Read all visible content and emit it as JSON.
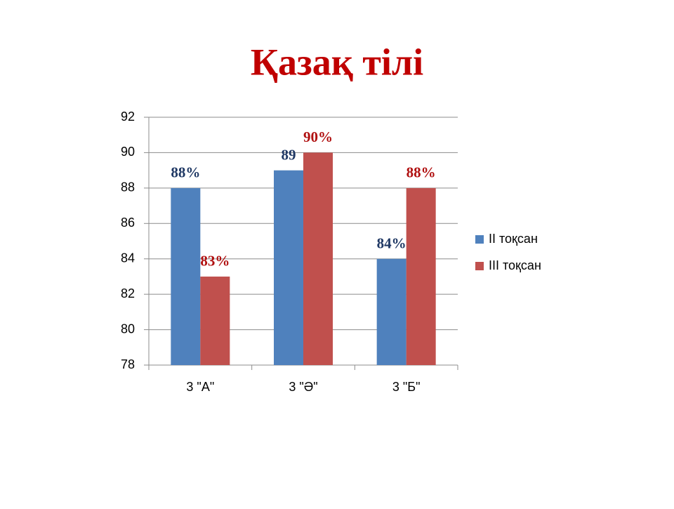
{
  "chart_data": {
    "type": "bar",
    "title": "Қазақ тілі",
    "categories": [
      "3 \"А\"",
      "3 \"Ә\"",
      "3 \"Б\""
    ],
    "series": [
      {
        "name": "II тоқсан",
        "color": "#4f81bd",
        "label_color": "#1f3864",
        "values": [
          88,
          89,
          84
        ],
        "value_labels": [
          "88%",
          "89",
          "84%"
        ]
      },
      {
        "name": "III тоқсан",
        "color": "#c0504d",
        "label_color": "#b01010",
        "values": [
          83,
          90,
          88
        ],
        "value_labels": [
          "83%",
          "90%",
          "88%"
        ]
      }
    ],
    "ylim": [
      78,
      92
    ],
    "yticks": [
      78,
      80,
      82,
      84,
      86,
      88,
      90,
      92
    ],
    "grid": true,
    "legend": "right"
  }
}
